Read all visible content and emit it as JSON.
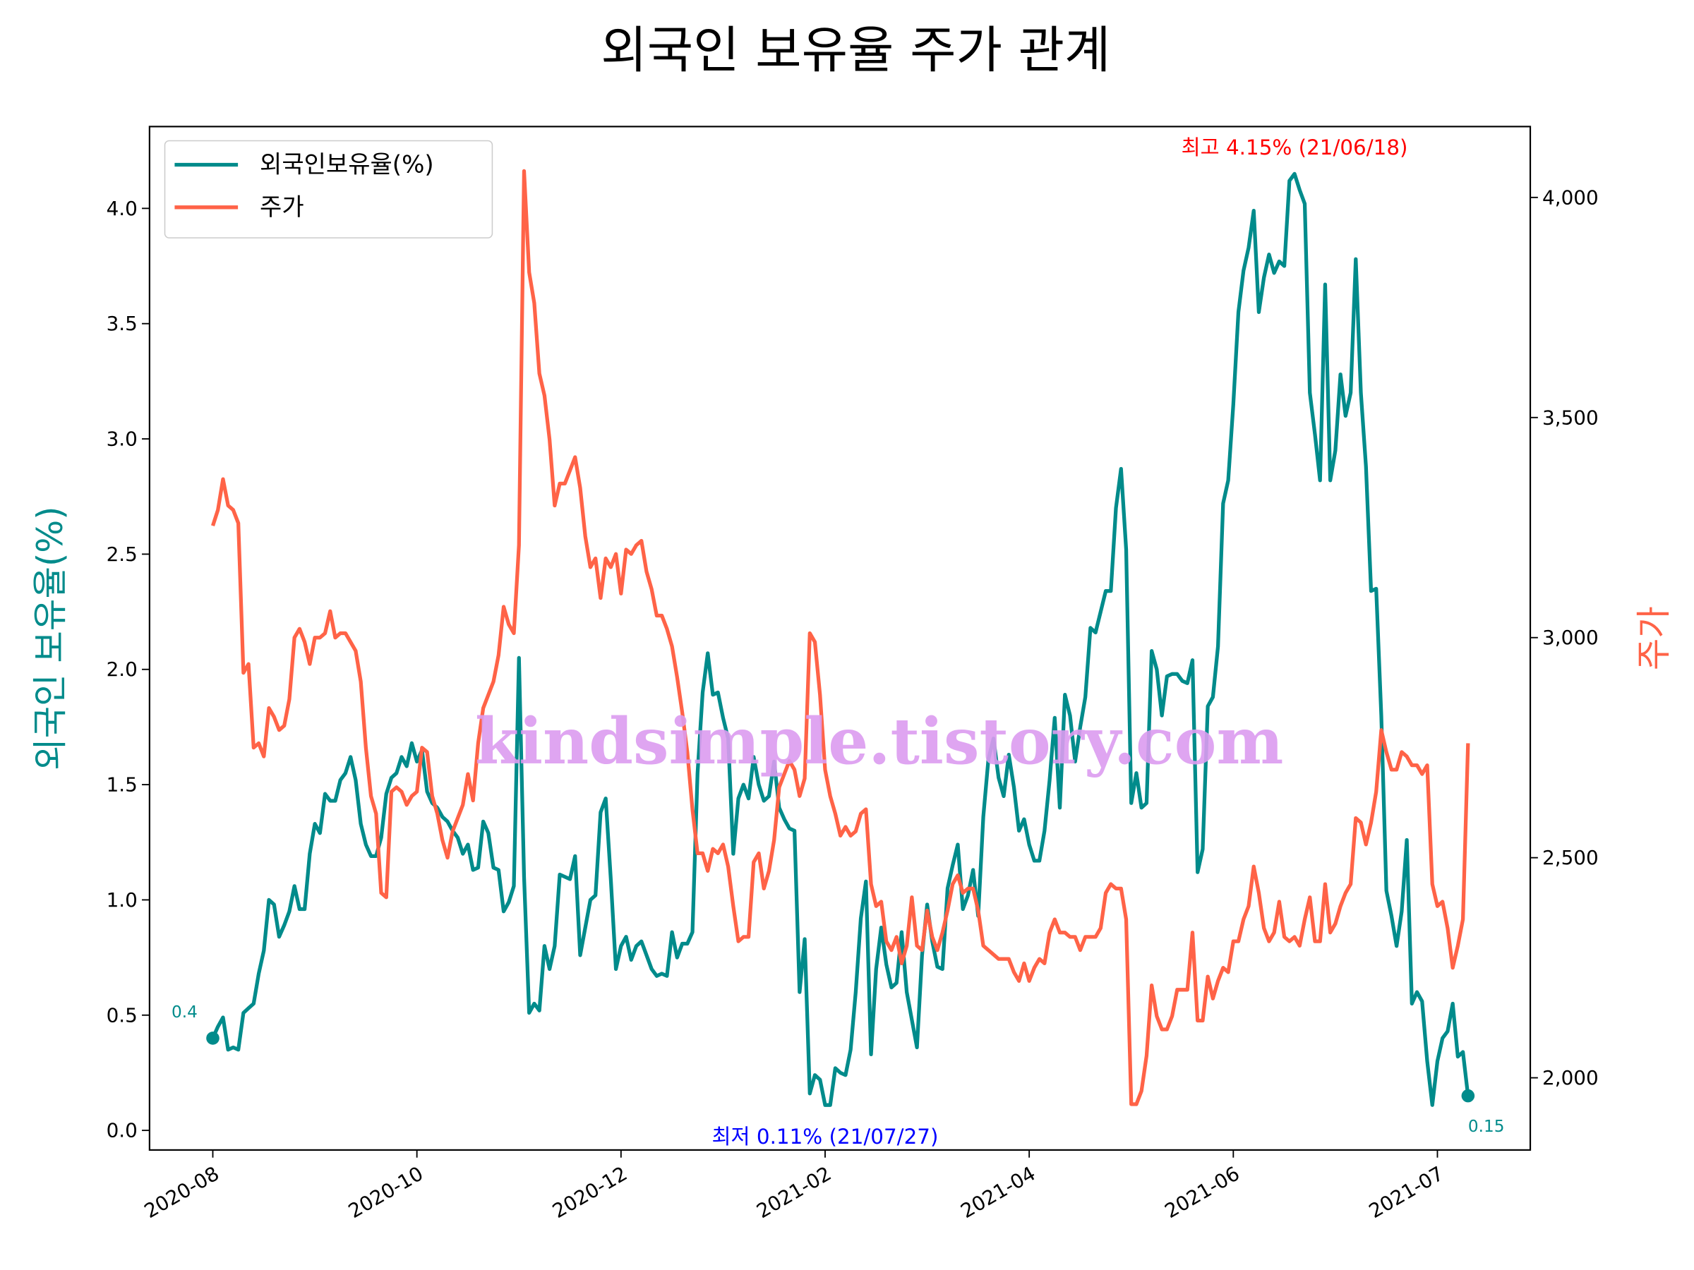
{
  "chart_data": {
    "type": "line",
    "title": "외국인 보유율 주가 관계",
    "ylabel": "외국인 보유율(%)",
    "y2label": "주가",
    "watermark": "kindsimple.tistory.com",
    "legend": "upper left",
    "grid": false,
    "xlim": [
      -0.62,
      12.91
    ],
    "xticks": [
      {
        "value": 0,
        "label": "2020-08"
      },
      {
        "value": 2,
        "label": "2020-10"
      },
      {
        "value": 4,
        "label": "2020-12"
      },
      {
        "value": 6,
        "label": "2021-02"
      },
      {
        "value": 8,
        "label": "2021-04"
      },
      {
        "value": 10,
        "label": "2021-06"
      },
      {
        "value": 12,
        "label": "2021-07"
      }
    ],
    "ylim": [
      -0.085,
      4.355
    ],
    "yticks": [
      {
        "value": 0,
        "label": "0.0"
      },
      0.5,
      {
        "value": 1,
        "label": "1.0"
      },
      1.5,
      {
        "value": 2,
        "label": "2.0"
      },
      2.5,
      {
        "value": 3,
        "label": "3.0"
      },
      3.5,
      {
        "value": 4,
        "label": "4.0"
      }
    ],
    "y2lim": [
      1836,
      4161
    ],
    "y2ticks": [
      {
        "value": 2000,
        "label": "2,000"
      },
      {
        "value": 2500,
        "label": "2,500"
      },
      {
        "value": 3000,
        "label": "3,000"
      },
      {
        "value": 3500,
        "label": "3,500"
      },
      {
        "value": 4000,
        "label": "4,000"
      }
    ],
    "annotations": [
      {
        "text": "최고 4.15% (21/06/18)",
        "color": "#ff0000"
      },
      {
        "text": "최저 0.11% (21/07/27)",
        "color": "#0000ff"
      }
    ],
    "x": [
      0,
      0.05,
      0.1,
      0.15,
      0.2,
      0.25,
      0.3,
      0.35,
      0.4,
      0.45,
      0.5,
      0.55,
      0.6,
      0.65,
      0.7,
      0.75,
      0.8,
      0.85,
      0.9,
      0.95,
      1,
      1.05,
      1.1,
      1.15,
      1.2,
      1.25,
      1.3,
      1.35,
      1.4,
      1.45,
      1.5,
      1.55,
      1.6,
      1.65,
      1.7,
      1.75,
      1.8,
      1.85,
      1.9,
      1.95,
      2,
      2.05,
      2.1,
      2.15,
      2.2,
      2.25,
      2.3,
      2.35,
      2.4,
      2.45,
      2.5,
      2.55,
      2.6,
      2.65,
      2.7,
      2.75,
      2.8,
      2.85,
      2.9,
      2.95,
      3,
      3.05,
      3.1,
      3.15,
      3.2,
      3.25,
      3.3,
      3.35,
      3.4,
      3.45,
      3.5,
      3.55,
      3.6,
      3.65,
      3.7,
      3.75,
      3.8,
      3.85,
      3.9,
      3.95,
      4,
      4.05,
      4.1,
      4.15,
      4.2,
      4.25,
      4.3,
      4.35,
      4.4,
      4.45,
      4.5,
      4.55,
      4.6,
      4.65,
      4.7,
      4.75,
      4.8,
      4.85,
      4.9,
      4.95,
      5,
      5.05,
      5.1,
      5.15,
      5.2,
      5.25,
      5.3,
      5.35,
      5.4,
      5.45,
      5.5,
      5.55,
      5.6,
      5.65,
      5.7,
      5.75,
      5.8,
      5.85,
      5.9,
      5.95,
      6,
      6.05,
      6.1,
      6.15,
      6.2,
      6.25,
      6.3,
      6.35,
      6.4,
      6.45,
      6.5,
      6.55,
      6.6,
      6.65,
      6.7,
      6.75,
      6.8,
      6.85,
      6.9,
      6.95,
      7,
      7.05,
      7.1,
      7.15,
      7.2,
      7.25,
      7.3,
      7.35,
      7.4,
      7.45,
      7.5,
      7.55,
      7.6,
      7.65,
      7.7,
      7.75,
      7.8,
      7.85,
      7.9,
      7.95,
      8,
      8.05,
      8.1,
      8.15,
      8.2,
      8.25,
      8.3,
      8.35,
      8.4,
      8.45,
      8.5,
      8.55,
      8.6,
      8.65,
      8.7,
      8.75,
      8.8,
      8.85,
      8.9,
      8.95,
      9,
      9.05,
      9.1,
      9.15,
      9.2,
      9.25,
      9.3,
      9.35,
      9.4,
      9.45,
      9.5,
      9.55,
      9.6,
      9.65,
      9.7,
      9.75,
      9.8,
      9.85,
      9.9,
      9.95,
      10,
      10.05,
      10.1,
      10.15,
      10.2,
      10.25,
      10.3,
      10.35,
      10.4,
      10.45,
      10.5,
      10.55,
      10.6,
      10.65,
      10.7,
      10.75,
      10.8,
      10.85,
      10.9,
      10.95,
      11,
      11.05,
      11.1,
      11.15,
      11.2,
      11.25,
      11.3,
      11.35,
      11.4,
      11.45,
      11.5,
      11.55,
      11.6,
      11.65,
      11.7,
      11.75,
      11.8,
      11.85,
      11.9,
      11.95,
      12,
      12.05,
      12.1,
      12.15,
      12.2,
      12.25,
      12.3
    ],
    "series": [
      {
        "name": "외국인보유율(%)",
        "color": "#008b8b",
        "axis": "y",
        "values": [
          0.4,
          0.45,
          0.49,
          0.35,
          0.36,
          0.35,
          0.51,
          0.53,
          0.55,
          0.68,
          0.78,
          1.0,
          0.98,
          0.84,
          0.89,
          0.95,
          1.06,
          0.96,
          0.96,
          1.2,
          1.33,
          1.29,
          1.46,
          1.43,
          1.43,
          1.52,
          1.55,
          1.62,
          1.52,
          1.33,
          1.24,
          1.19,
          1.19,
          1.27,
          1.46,
          1.53,
          1.55,
          1.62,
          1.58,
          1.68,
          1.6,
          1.65,
          1.47,
          1.42,
          1.4,
          1.36,
          1.34,
          1.3,
          1.27,
          1.2,
          1.24,
          1.13,
          1.14,
          1.34,
          1.29,
          1.14,
          1.13,
          0.95,
          0.99,
          1.06,
          2.05,
          1.1,
          0.51,
          0.55,
          0.52,
          0.8,
          0.7,
          0.8,
          1.11,
          1.1,
          1.09,
          1.19,
          0.76,
          0.88,
          1.0,
          1.02,
          1.38,
          1.44,
          1.09,
          0.7,
          0.8,
          0.84,
          0.74,
          0.8,
          0.82,
          0.76,
          0.7,
          0.67,
          0.68,
          0.67,
          0.86,
          0.75,
          0.81,
          0.81,
          0.86,
          1.55,
          1.9,
          2.07,
          1.89,
          1.9,
          1.79,
          1.7,
          1.2,
          1.44,
          1.5,
          1.44,
          1.62,
          1.5,
          1.43,
          1.45,
          1.6,
          1.4,
          1.35,
          1.31,
          1.3,
          0.6,
          0.83,
          0.16,
          0.24,
          0.22,
          0.11,
          0.11,
          0.27,
          0.25,
          0.24,
          0.35,
          0.6,
          0.92,
          1.08,
          0.33,
          0.7,
          0.88,
          0.72,
          0.62,
          0.64,
          0.86,
          0.6,
          0.48,
          0.36,
          0.76,
          0.98,
          0.82,
          0.71,
          0.7,
          1.05,
          1.15,
          1.24,
          0.96,
          1.02,
          1.13,
          0.93,
          1.36,
          1.61,
          1.7,
          1.53,
          1.45,
          1.63,
          1.49,
          1.3,
          1.35,
          1.24,
          1.17,
          1.17,
          1.3,
          1.52,
          1.79,
          1.4,
          1.89,
          1.8,
          1.6,
          1.75,
          1.88,
          2.18,
          2.16,
          2.25,
          2.34,
          2.34,
          2.7,
          2.87,
          2.52,
          1.42,
          1.55,
          1.4,
          1.42,
          2.08,
          2.0,
          1.8,
          1.97,
          1.98,
          1.98,
          1.95,
          1.94,
          2.04,
          1.12,
          1.22,
          1.84,
          1.88,
          2.1,
          2.72,
          2.82,
          3.15,
          3.55,
          3.73,
          3.83,
          3.99,
          3.55,
          3.7,
          3.8,
          3.72,
          3.77,
          3.75,
          4.12,
          4.15,
          4.08,
          4.02,
          3.2,
          3.02,
          2.82,
          3.67,
          2.82,
          2.95,
          3.28,
          3.1,
          3.2,
          3.78,
          3.2,
          2.88,
          2.34,
          2.35,
          1.8,
          1.04,
          0.93,
          0.8,
          0.95,
          1.26,
          0.55,
          0.6,
          0.56,
          0.3,
          0.11,
          0.3,
          0.4,
          0.43,
          0.55,
          0.32,
          0.34,
          0.15
        ]
      },
      {
        "name": "주가",
        "color": "#ff6347",
        "axis": "y2",
        "values": [
          3254,
          3290,
          3360,
          3300,
          3290,
          3260,
          2920,
          2940,
          2750,
          2760,
          2730,
          2840,
          2820,
          2790,
          2800,
          2860,
          3000,
          3020,
          2990,
          2940,
          3000,
          3000,
          3010,
          3060,
          3000,
          3010,
          3010,
          2990,
          2970,
          2900,
          2750,
          2640,
          2600,
          2420,
          2410,
          2650,
          2660,
          2650,
          2620,
          2640,
          2650,
          2750,
          2740,
          2640,
          2600,
          2540,
          2500,
          2560,
          2590,
          2620,
          2690,
          2630,
          2760,
          2840,
          2870,
          2900,
          2960,
          3070,
          3030,
          3010,
          3210,
          4060,
          3830,
          3760,
          3600,
          3550,
          3450,
          3300,
          3350,
          3350,
          3380,
          3410,
          3340,
          3230,
          3160,
          3180,
          3090,
          3180,
          3160,
          3190,
          3100,
          3200,
          3190,
          3210,
          3220,
          3150,
          3110,
          3050,
          3050,
          3020,
          2980,
          2910,
          2830,
          2740,
          2610,
          2510,
          2510,
          2470,
          2520,
          2510,
          2530,
          2480,
          2390,
          2310,
          2320,
          2320,
          2490,
          2510,
          2430,
          2470,
          2540,
          2660,
          2690,
          2720,
          2700,
          2640,
          2680,
          3010,
          2990,
          2870,
          2700,
          2640,
          2600,
          2550,
          2570,
          2550,
          2560,
          2600,
          2610,
          2440,
          2390,
          2400,
          2310,
          2290,
          2320,
          2260,
          2300,
          2410,
          2300,
          2290,
          2380,
          2320,
          2290,
          2330,
          2380,
          2440,
          2460,
          2420,
          2430,
          2430,
          2380,
          2300,
          2290,
          2280,
          2270,
          2270,
          2270,
          2240,
          2220,
          2260,
          2220,
          2250,
          2270,
          2260,
          2330,
          2360,
          2330,
          2330,
          2320,
          2320,
          2290,
          2320,
          2320,
          2320,
          2340,
          2420,
          2440,
          2430,
          2430,
          2360,
          1940,
          1940,
          1970,
          2050,
          2210,
          2140,
          2110,
          2110,
          2140,
          2200,
          2200,
          2200,
          2330,
          2130,
          2130,
          2230,
          2180,
          2220,
          2250,
          2240,
          2310,
          2310,
          2360,
          2390,
          2480,
          2420,
          2340,
          2310,
          2330,
          2400,
          2320,
          2310,
          2320,
          2300,
          2360,
          2410,
          2310,
          2310,
          2440,
          2330,
          2350,
          2390,
          2420,
          2440,
          2590,
          2580,
          2530,
          2580,
          2650,
          2790,
          2740,
          2700,
          2700,
          2740,
          2730,
          2710,
          2710,
          2690,
          2710,
          2440,
          2390,
          2400,
          2340,
          2250,
          2300,
          2360,
          2760
        ]
      }
    ]
  }
}
